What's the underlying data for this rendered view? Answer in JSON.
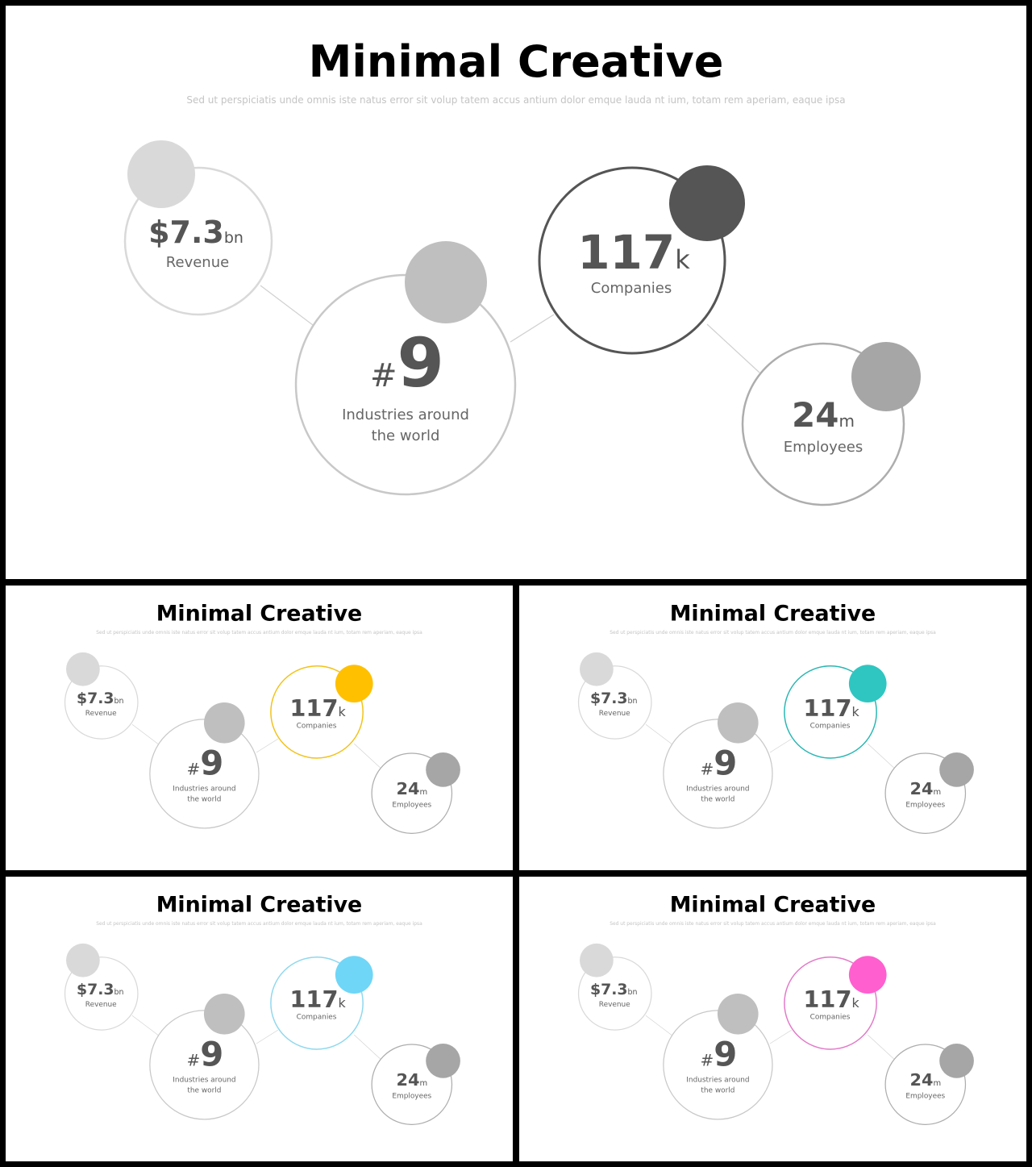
{
  "slide": {
    "title": "Minimal Creative",
    "subtitle": "Sed ut perspiciatis unde omnis iste natus error sit volup tatem accus antium dolor emque lauda nt ium, totam rem aperiam, eaque ipsa"
  },
  "stats": {
    "revenue": {
      "prefix": "",
      "value": "$7.3",
      "unit": "bn",
      "label": "Revenue"
    },
    "industries": {
      "prefix": "#",
      "value": "9",
      "unit": "",
      "label_line1": "Industries around",
      "label_line2": "the world"
    },
    "companies": {
      "prefix": "",
      "value": "117",
      "unit": "k",
      "label": "Companies"
    },
    "employees": {
      "prefix": "",
      "value": "24",
      "unit": "m",
      "label": "Employees"
    }
  },
  "variants": [
    {
      "id": "main",
      "accent": "#555555",
      "accent_fill": "#555555"
    },
    {
      "id": "yellow",
      "accent": "#f2c21a",
      "accent_fill": "#ffc000"
    },
    {
      "id": "teal",
      "accent": "#2ab7b3",
      "accent_fill": "#2fc6c1"
    },
    {
      "id": "blue",
      "accent": "#8fd8ee",
      "accent_fill": "#6fd6f7"
    },
    {
      "id": "pink",
      "accent": "#e27ac8",
      "accent_fill": "#ff5fcf"
    }
  ],
  "colors": {
    "revenue_ring": "#d9d9d9",
    "revenue_dot": "#d9d9d9",
    "industries_ring": "#c8c8c8",
    "industries_dot": "#bfbfbf",
    "employees_ring": "#adadad",
    "employees_dot": "#a6a6a6",
    "connector": "#d0d0d0"
  }
}
